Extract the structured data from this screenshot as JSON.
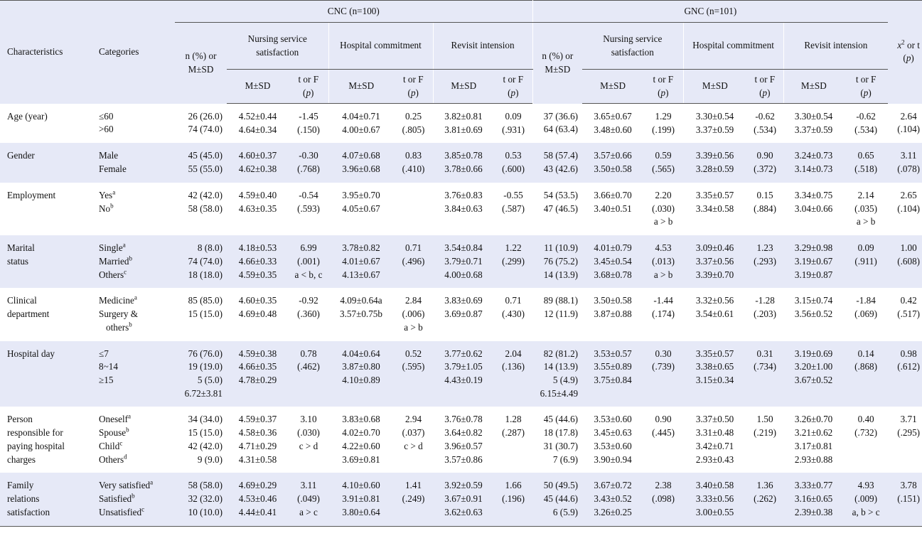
{
  "header": {
    "characteristics": "Characteristics",
    "categories": "Categories",
    "cnc": "CNC (n=100)",
    "gnc": "GNC (n=101)",
    "n_pct": "n (%) or M±SD",
    "nss": "Nursing service satisfaction",
    "hc": "Hospital commitment",
    "ri": "Revisit intension",
    "msd": "M±SD",
    "tf": "t or F",
    "p": "p",
    "x2": "x",
    "x2_sup": "2",
    "x2_tail": " or t",
    "x2_p": "p"
  },
  "rows": [
    {
      "char": [
        "Age (year)"
      ],
      "cat": [
        {
          "t": "≤60"
        },
        {
          "t": ">60"
        }
      ],
      "cnc_n": [
        "26 (26.0)",
        "74 (74.0)"
      ],
      "cnc_nss_m": [
        "4.52±0.44",
        "4.64±0.34"
      ],
      "cnc_nss_t": [
        "-1.45",
        "(.150)"
      ],
      "cnc_hc_m": [
        "4.04±0.71",
        "4.00±0.67"
      ],
      "cnc_hc_t": [
        "0.25",
        "(.805)"
      ],
      "cnc_ri_m": [
        "3.82±0.81",
        "3.81±0.69"
      ],
      "cnc_ri_t": [
        "0.09",
        "(.931)"
      ],
      "gnc_n": [
        "37 (36.6)",
        "64 (63.4)"
      ],
      "gnc_nss_m": [
        "3.65±0.67",
        "3.48±0.60"
      ],
      "gnc_nss_t": [
        "1.29",
        "(.199)"
      ],
      "gnc_hc_m": [
        "3.30±0.54",
        "3.37±0.59"
      ],
      "gnc_hc_t": [
        "-0.62",
        "(.534)"
      ],
      "gnc_ri_m": [
        "3.30±0.54",
        "3.37±0.59"
      ],
      "gnc_ri_t": [
        "-0.62",
        "(.534)"
      ],
      "x2": [
        "2.64",
        "(.104)"
      ]
    },
    {
      "char": [
        "Gender"
      ],
      "cat": [
        {
          "t": "Male"
        },
        {
          "t": "Female"
        }
      ],
      "cnc_n": [
        "45 (45.0)",
        "55 (55.0)"
      ],
      "cnc_nss_m": [
        "4.60±0.37",
        "4.62±0.38"
      ],
      "cnc_nss_t": [
        "-0.30",
        "(.768)"
      ],
      "cnc_hc_m": [
        "4.07±0.68",
        "3.96±0.68"
      ],
      "cnc_hc_t": [
        "0.83",
        "(.410)"
      ],
      "cnc_ri_m": [
        "3.85±0.78",
        "3.78±0.66"
      ],
      "cnc_ri_t": [
        "0.53",
        "(.600)"
      ],
      "gnc_n": [
        "58 (57.4)",
        "43 (42.6)"
      ],
      "gnc_nss_m": [
        "3.57±0.66",
        "3.50±0.58"
      ],
      "gnc_nss_t": [
        "0.59",
        "(.565)"
      ],
      "gnc_hc_m": [
        "3.39±0.56",
        "3.28±0.59"
      ],
      "gnc_hc_t": [
        "0.90",
        "(.372)"
      ],
      "gnc_ri_m": [
        "3.24±0.73",
        "3.14±0.73"
      ],
      "gnc_ri_t": [
        "0.65",
        "(.518)"
      ],
      "x2": [
        "3.11",
        "(.078)"
      ]
    },
    {
      "char": [
        "Employment"
      ],
      "cat": [
        {
          "t": "Yes",
          "s": "a"
        },
        {
          "t": "No",
          "s": "b"
        }
      ],
      "cnc_n": [
        "42 (42.0)",
        "58 (58.0)"
      ],
      "cnc_nss_m": [
        "4.59±0.40",
        "4.63±0.35"
      ],
      "cnc_nss_t": [
        "-0.54",
        "(.593)"
      ],
      "cnc_hc_m": [
        "3.95±0.70",
        "4.05±0.67"
      ],
      "cnc_hc_t": [],
      "cnc_ri_m": [
        "3.76±0.83",
        "3.84±0.63"
      ],
      "cnc_ri_t": [
        "-0.55",
        "(.587)"
      ],
      "gnc_n": [
        "54 (53.5)",
        "47 (46.5)"
      ],
      "gnc_nss_m": [
        "3.66±0.70",
        "3.40±0.51"
      ],
      "gnc_nss_t": [
        "2.20",
        "(.030)",
        "a > b"
      ],
      "gnc_hc_m": [
        "3.35±0.57",
        "3.34±0.58"
      ],
      "gnc_hc_t": [
        "0.15",
        "(.884)"
      ],
      "gnc_ri_m": [
        "3.34±0.75",
        "3.04±0.66"
      ],
      "gnc_ri_t": [
        "2.14",
        "(.035)",
        "a > b"
      ],
      "x2": [
        "2.65",
        "(.104)"
      ]
    },
    {
      "char": [
        "Marital",
        "status"
      ],
      "cat": [
        {
          "t": "Single",
          "s": "a"
        },
        {
          "t": "Married",
          "s": "b"
        },
        {
          "t": "Others",
          "s": "c"
        }
      ],
      "cnc_n": [
        "8 (8.0)",
        "74 (74.0)",
        "18 (18.0)"
      ],
      "cnc_nss_m": [
        "4.18±0.53",
        "4.66±0.33",
        "4.59±0.35"
      ],
      "cnc_nss_t": [
        "6.99",
        "(.001)",
        "a < b, c"
      ],
      "cnc_hc_m": [
        "3.78±0.82",
        "4.01±0.67",
        "4.13±0.67"
      ],
      "cnc_hc_t": [
        "0.71",
        "(.496)"
      ],
      "cnc_ri_m": [
        "3.54±0.84",
        "3.79±0.71",
        "4.00±0.68"
      ],
      "cnc_ri_t": [
        "1.22",
        "(.299)"
      ],
      "gnc_n": [
        "11 (10.9)",
        "76 (75.2)",
        "14 (13.9)"
      ],
      "gnc_nss_m": [
        "4.01±0.79",
        "3.45±0.54",
        "3.68±0.78"
      ],
      "gnc_nss_t": [
        "4.53",
        "(.013)",
        "a > b"
      ],
      "gnc_hc_m": [
        "3.09±0.46",
        "3.37±0.56",
        "3.39±0.70"
      ],
      "gnc_hc_t": [
        "1.23",
        "(.293)"
      ],
      "gnc_ri_m": [
        "3.29±0.98",
        "3.19±0.67",
        "3.19±0.87"
      ],
      "gnc_ri_t": [
        "0.09",
        "(.911)"
      ],
      "x2": [
        "1.00",
        "(.608)"
      ]
    },
    {
      "char": [
        "Clinical",
        "department"
      ],
      "cat": [
        {
          "t": "Medicine",
          "s": "a"
        },
        {
          "t": "Surgery &"
        },
        {
          "t": "others",
          "s": "b",
          "ind": true
        }
      ],
      "cnc_n": [
        "85 (85.0)",
        "15 (15.0)"
      ],
      "cnc_nss_m": [
        "4.60±0.35",
        "4.69±0.48"
      ],
      "cnc_nss_t": [
        "-0.92",
        "(.360)"
      ],
      "cnc_hc_m": [
        "4.09±0.64a",
        "3.57±0.75b"
      ],
      "cnc_hc_t": [
        "2.84",
        "(.006)",
        "a > b"
      ],
      "cnc_ri_m": [
        "3.83±0.69",
        "3.69±0.87"
      ],
      "cnc_ri_t": [
        "0.71",
        "(.430)"
      ],
      "gnc_n": [
        "89 (88.1)",
        "12 (11.9)"
      ],
      "gnc_nss_m": [
        "3.50±0.58",
        "3.87±0.88"
      ],
      "gnc_nss_t": [
        "-1.44",
        "(.174)"
      ],
      "gnc_hc_m": [
        "3.32±0.56",
        "3.54±0.61"
      ],
      "gnc_hc_t": [
        "-1.28",
        "(.203)"
      ],
      "gnc_ri_m": [
        "3.15±0.74",
        "3.56±0.52"
      ],
      "gnc_ri_t": [
        "-1.84",
        "(.069)"
      ],
      "x2": [
        "0.42",
        "(.517)"
      ]
    },
    {
      "char": [
        "Hospital day"
      ],
      "cat": [
        {
          "t": "≤7"
        },
        {
          "t": "8~14"
        },
        {
          "t": "≥15"
        }
      ],
      "cnc_n": [
        "76 (76.0)",
        "19 (19.0)",
        "5 (5.0)",
        "6.72±3.81"
      ],
      "cnc_nss_m": [
        "4.59±0.38",
        "4.66±0.35",
        "4.78±0.29"
      ],
      "cnc_nss_t": [
        "0.78",
        "(.462)"
      ],
      "cnc_hc_m": [
        "4.04±0.64",
        "3.87±0.80",
        "4.10±0.89"
      ],
      "cnc_hc_t": [
        "0.52",
        "(.595)"
      ],
      "cnc_ri_m": [
        "3.77±0.62",
        "3.79±1.05",
        "4.43±0.19"
      ],
      "cnc_ri_t": [
        "2.04",
        "(.136)"
      ],
      "gnc_n": [
        "82 (81.2)",
        "14 (13.9)",
        "5 (4.9)",
        "6.15±4.49"
      ],
      "gnc_nss_m": [
        "3.53±0.57",
        "3.55±0.89",
        "3.75±0.84"
      ],
      "gnc_nss_t": [
        "0.30",
        "(.739)"
      ],
      "gnc_hc_m": [
        "3.35±0.57",
        "3.38±0.65",
        "3.15±0.34"
      ],
      "gnc_hc_t": [
        "0.31",
        "(.734)"
      ],
      "gnc_ri_m": [
        "3.19±0.69",
        "3.20±1.00",
        "3.67±0.52"
      ],
      "gnc_ri_t": [
        "0.14",
        "(.868)"
      ],
      "x2": [
        "0.98",
        "(.612)"
      ]
    },
    {
      "char": [
        "Person",
        "responsible for",
        "paying hospital",
        "charges"
      ],
      "cat": [
        {
          "t": "Oneself",
          "s": "a"
        },
        {
          "t": "Spouse",
          "s": "b"
        },
        {
          "t": "Child",
          "s": "c"
        },
        {
          "t": "Others",
          "s": "d"
        }
      ],
      "cnc_n": [
        "34 (34.0)",
        "15 (15.0)",
        "42 (42.0)",
        "9 (9.0)"
      ],
      "cnc_nss_m": [
        "4.59±0.37",
        "4.58±0.36",
        "4.71±0.29",
        "4.31±0.58"
      ],
      "cnc_nss_t": [
        "3.10",
        "(.030)",
        "c > d"
      ],
      "cnc_hc_m": [
        "3.83±0.68",
        "4.02±0.70",
        "4.22±0.60",
        "3.69±0.81"
      ],
      "cnc_hc_t": [
        "2.94",
        "(.037)",
        "c > d"
      ],
      "cnc_ri_m": [
        "3.76±0.78",
        "3.64±0.82",
        "3.96±0.57",
        "3.57±0.86"
      ],
      "cnc_ri_t": [
        "1.28",
        "(.287)"
      ],
      "gnc_n": [
        "45 (44.6)",
        "18 (17.8)",
        "31 (30.7)",
        "7 (6.9)"
      ],
      "gnc_nss_m": [
        "3.53±0.60",
        "3.45±0.63",
        "3.53±0.60",
        "3.90±0.94"
      ],
      "gnc_nss_t": [
        "0.90",
        "(.445)"
      ],
      "gnc_hc_m": [
        "3.37±0.50",
        "3.31±0.48",
        "3.42±0.71",
        "2.93±0.43"
      ],
      "gnc_hc_t": [
        "1.50",
        "(.219)"
      ],
      "gnc_ri_m": [
        "3.26±0.70",
        "3.21±0.62",
        "3.17±0.81",
        "2.93±0.88"
      ],
      "gnc_ri_t": [
        "0.40",
        "(.732)"
      ],
      "x2": [
        "3.71",
        "(.295)"
      ]
    },
    {
      "char": [
        "Family",
        "relations",
        "satisfaction"
      ],
      "cat": [
        {
          "t": "Very satisfied",
          "s": "a"
        },
        {
          "t": "Satisfied",
          "s": "b"
        },
        {
          "t": "Unsatisfied",
          "s": "c"
        }
      ],
      "cnc_n": [
        "58 (58.0)",
        "32 (32.0)",
        "10 (10.0)"
      ],
      "cnc_nss_m": [
        "4.69±0.29",
        "4.53±0.46",
        "4.44±0.41"
      ],
      "cnc_nss_t": [
        "3.11",
        "(.049)",
        "a > c"
      ],
      "cnc_hc_m": [
        "4.10±0.60",
        "3.91±0.81",
        "3.80±0.64"
      ],
      "cnc_hc_t": [
        "1.41",
        "(.249)"
      ],
      "cnc_ri_m": [
        "3.92±0.59",
        "3.67±0.91",
        "3.62±0.63"
      ],
      "cnc_ri_t": [
        "1.66",
        "(.196)"
      ],
      "gnc_n": [
        "50 (49.5)",
        "45 (44.6)",
        "6 (5.9)"
      ],
      "gnc_nss_m": [
        "3.67±0.72",
        "3.43±0.52",
        "3.26±0.25"
      ],
      "gnc_nss_t": [
        "2.38",
        "(.098)"
      ],
      "gnc_hc_m": [
        "3.40±0.58",
        "3.33±0.56",
        "3.00±0.55"
      ],
      "gnc_hc_t": [
        "1.36",
        "(.262)"
      ],
      "gnc_ri_m": [
        "3.33±0.77",
        "3.16±0.65",
        "2.39±0.38"
      ],
      "gnc_ri_t": [
        "4.93",
        "(.009)",
        "a, b > c"
      ],
      "x2": [
        "3.78",
        "(.151)"
      ]
    }
  ]
}
